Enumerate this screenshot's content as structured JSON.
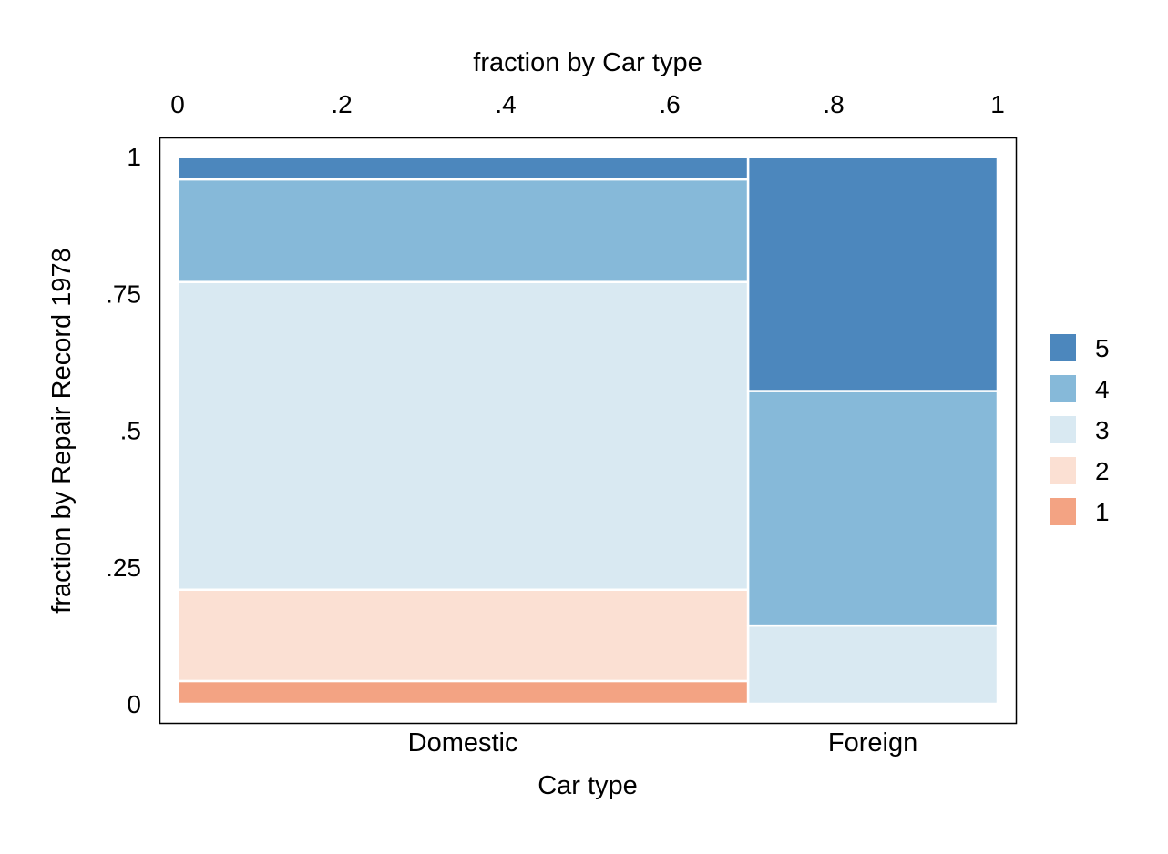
{
  "chart_data": {
    "type": "mosaic",
    "title": "",
    "x_top_axis": {
      "label": "fraction by Car type",
      "ticks": [
        0,
        0.2,
        0.4,
        0.6,
        0.8,
        1
      ],
      "tick_labels": [
        "0",
        ".2",
        ".4",
        ".6",
        ".8",
        "1"
      ],
      "range": [
        0,
        1
      ]
    },
    "y_axis": {
      "label": "fraction by Repair Record 1978",
      "ticks": [
        0,
        0.25,
        0.5,
        0.75,
        1
      ],
      "tick_labels": [
        "0",
        ".25",
        ".5",
        ".75",
        "1"
      ],
      "range": [
        0,
        1
      ]
    },
    "x_bottom_axis": {
      "label": "Car type"
    },
    "categories": [
      {
        "name": "Domestic",
        "width": 0.6957,
        "segments": [
          {
            "level": "1",
            "fraction": 0.0417
          },
          {
            "level": "2",
            "fraction": 0.1667
          },
          {
            "level": "3",
            "fraction": 0.5625
          },
          {
            "level": "4",
            "fraction": 0.1875
          },
          {
            "level": "5",
            "fraction": 0.0417
          }
        ]
      },
      {
        "name": "Foreign",
        "width": 0.3043,
        "segments": [
          {
            "level": "1",
            "fraction": 0.0
          },
          {
            "level": "2",
            "fraction": 0.0
          },
          {
            "level": "3",
            "fraction": 0.1429
          },
          {
            "level": "4",
            "fraction": 0.4286
          },
          {
            "level": "5",
            "fraction": 0.4286
          }
        ]
      }
    ],
    "legend": {
      "position": "right",
      "items": [
        {
          "label": "5",
          "color": "#4c87bd"
        },
        {
          "label": "4",
          "color": "#86b9d9"
        },
        {
          "label": "3",
          "color": "#d9e9f2"
        },
        {
          "label": "2",
          "color": "#fbe0d3"
        },
        {
          "label": "1",
          "color": "#f3a383"
        }
      ]
    },
    "colors": {
      "1": "#f3a383",
      "2": "#fbe0d3",
      "3": "#d9e9f2",
      "4": "#86b9d9",
      "5": "#4c87bd"
    },
    "grid": false
  }
}
